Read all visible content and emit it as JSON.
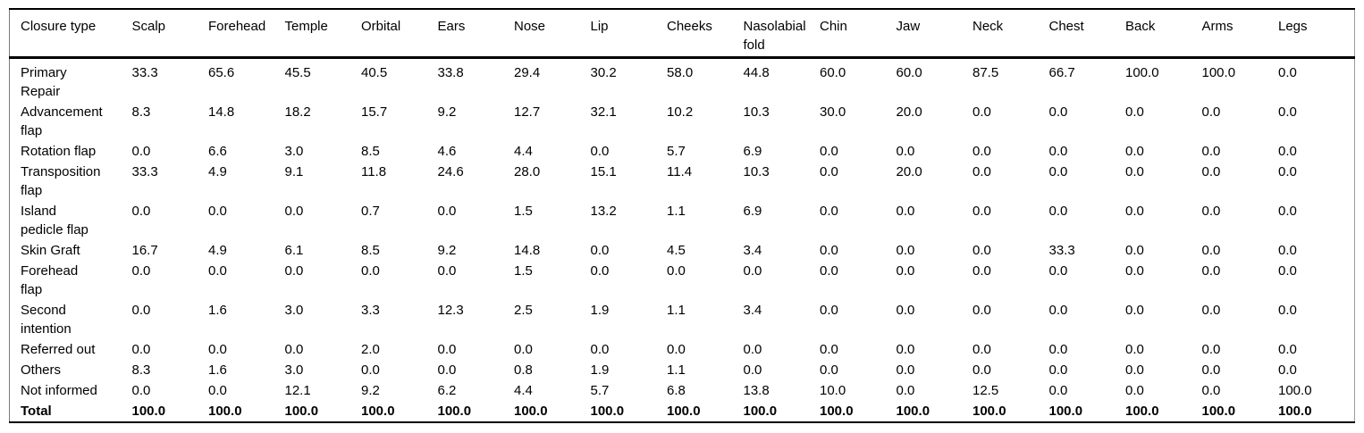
{
  "chart_data": {
    "type": "table",
    "title": "",
    "columns": [
      "Closure type",
      "Scalp",
      "Forehead",
      "Temple",
      "Orbital",
      "Ears",
      "Nose",
      "Lip",
      "Cheeks",
      "Nasolabial\nfold",
      "Chin",
      "Jaw",
      "Neck",
      "Chest",
      "Back",
      "Arms",
      "Legs"
    ],
    "rows": [
      {
        "label": "Primary\nRepair",
        "bold": false,
        "values": [
          "33.3",
          "65.6",
          "45.5",
          "40.5",
          "33.8",
          "29.4",
          "30.2",
          "58.0",
          "44.8",
          "60.0",
          "60.0",
          "87.5",
          "66.7",
          "100.0",
          "100.0",
          "0.0"
        ]
      },
      {
        "label": "Advancement\nflap",
        "bold": false,
        "values": [
          "8.3",
          "14.8",
          "18.2",
          "15.7",
          "9.2",
          "12.7",
          "32.1",
          "10.2",
          "10.3",
          "30.0",
          "20.0",
          "0.0",
          "0.0",
          "0.0",
          "0.0",
          "0.0"
        ]
      },
      {
        "label": "Rotation flap",
        "bold": false,
        "values": [
          "0.0",
          "6.6",
          "3.0",
          "8.5",
          "4.6",
          "4.4",
          "0.0",
          "5.7",
          "6.9",
          "0.0",
          "0.0",
          "0.0",
          "0.0",
          "0.0",
          "0.0",
          "0.0"
        ]
      },
      {
        "label": "Transposition\nflap",
        "bold": false,
        "values": [
          "33.3",
          "4.9",
          "9.1",
          "11.8",
          "24.6",
          "28.0",
          "15.1",
          "11.4",
          "10.3",
          "0.0",
          "20.0",
          "0.0",
          "0.0",
          "0.0",
          "0.0",
          "0.0"
        ]
      },
      {
        "label": "Island\npedicle flap",
        "bold": false,
        "values": [
          "0.0",
          "0.0",
          "0.0",
          "0.7",
          "0.0",
          "1.5",
          "13.2",
          "1.1",
          "6.9",
          "0.0",
          "0.0",
          "0.0",
          "0.0",
          "0.0",
          "0.0",
          "0.0"
        ]
      },
      {
        "label": "Skin Graft",
        "bold": false,
        "values": [
          "16.7",
          "4.9",
          "6.1",
          "8.5",
          "9.2",
          "14.8",
          "0.0",
          "4.5",
          "3.4",
          "0.0",
          "0.0",
          "0.0",
          "33.3",
          "0.0",
          "0.0",
          "0.0"
        ]
      },
      {
        "label": "Forehead\nflap",
        "bold": false,
        "values": [
          "0.0",
          "0.0",
          "0.0",
          "0.0",
          "0.0",
          "1.5",
          "0.0",
          "0.0",
          "0.0",
          "0.0",
          "0.0",
          "0.0",
          "0.0",
          "0.0",
          "0.0",
          "0.0"
        ]
      },
      {
        "label": "Second\nintention",
        "bold": false,
        "values": [
          "0.0",
          "1.6",
          "3.0",
          "3.3",
          "12.3",
          "2.5",
          "1.9",
          "1.1",
          "3.4",
          "0.0",
          "0.0",
          "0.0",
          "0.0",
          "0.0",
          "0.0",
          "0.0"
        ]
      },
      {
        "label": "Referred out",
        "bold": false,
        "values": [
          "0.0",
          "0.0",
          "0.0",
          "2.0",
          "0.0",
          "0.0",
          "0.0",
          "0.0",
          "0.0",
          "0.0",
          "0.0",
          "0.0",
          "0.0",
          "0.0",
          "0.0",
          "0.0"
        ]
      },
      {
        "label": "Others",
        "bold": false,
        "values": [
          "8.3",
          "1.6",
          "3.0",
          "0.0",
          "0.0",
          "0.8",
          "1.9",
          "1.1",
          "0.0",
          "0.0",
          "0.0",
          "0.0",
          "0.0",
          "0.0",
          "0.0",
          "0.0"
        ]
      },
      {
        "label": "Not informed",
        "bold": false,
        "values": [
          "0.0",
          "0.0",
          "12.1",
          "9.2",
          "6.2",
          "4.4",
          "5.7",
          "6.8",
          "13.8",
          "10.0",
          "0.0",
          "12.5",
          "0.0",
          "0.0",
          "0.0",
          "100.0"
        ]
      },
      {
        "label": "Total",
        "bold": true,
        "values": [
          "100.0",
          "100.0",
          "100.0",
          "100.0",
          "100.0",
          "100.0",
          "100.0",
          "100.0",
          "100.0",
          "100.0",
          "100.0",
          "100.0",
          "100.0",
          "100.0",
          "100.0",
          "100.0"
        ]
      }
    ]
  }
}
